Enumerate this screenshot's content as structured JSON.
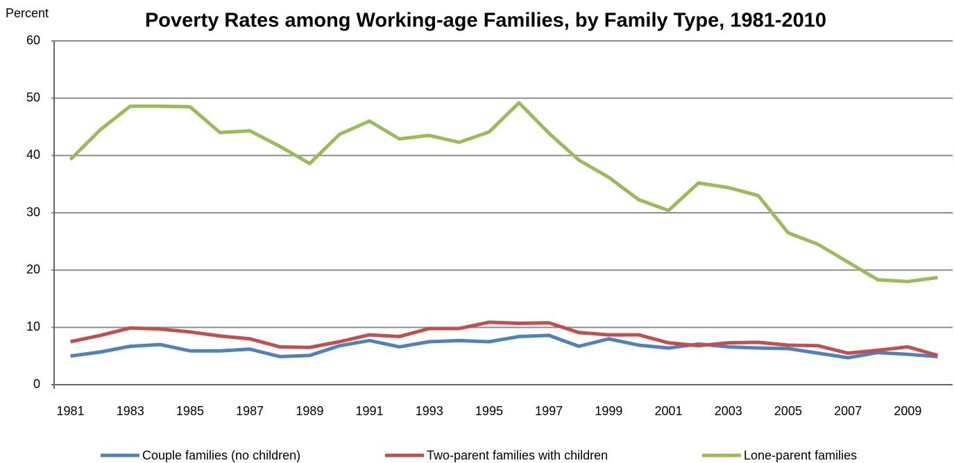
{
  "chart_data": {
    "type": "line",
    "title": "Poverty Rates among Working-age Families, by Family Type, 1981-2010",
    "y_axis_label": "Percent",
    "categories": [
      "1981",
      null,
      "1983",
      null,
      "1985",
      null,
      "1987",
      null,
      "1989",
      null,
      "1991",
      null,
      "1993",
      null,
      "1995",
      null,
      "1997",
      null,
      "1999",
      null,
      "2001",
      null,
      "2003",
      null,
      "2005",
      null,
      "2007",
      null,
      "2009",
      null
    ],
    "series": [
      {
        "name": "Couple families (no children)",
        "color": "#4f81bd",
        "values": [
          5.0,
          5.7,
          6.7,
          7.0,
          5.9,
          5.9,
          6.2,
          4.9,
          5.1,
          6.8,
          7.7,
          6.6,
          7.5,
          7.7,
          7.5,
          8.4,
          8.6,
          6.7,
          8.0,
          6.9,
          6.4,
          7.1,
          6.6,
          6.4,
          6.3,
          5.5,
          4.7,
          5.6,
          5.3,
          4.9
        ]
      },
      {
        "name": "Two-parent families with children",
        "color": "#c0504d",
        "values": [
          7.5,
          8.6,
          9.9,
          9.7,
          9.2,
          8.5,
          8.0,
          6.6,
          6.5,
          7.5,
          8.7,
          8.4,
          9.8,
          9.8,
          10.9,
          10.7,
          10.8,
          9.1,
          8.7,
          8.7,
          7.3,
          6.8,
          7.3,
          7.4,
          6.9,
          6.8,
          5.5,
          6.0,
          6.6,
          5.1
        ]
      },
      {
        "name": "Lone-parent families",
        "color": "#9bbb59",
        "values": [
          39.3,
          44.5,
          48.6,
          48.6,
          48.5,
          44.0,
          44.3,
          41.6,
          38.6,
          43.7,
          46.0,
          42.9,
          43.5,
          42.3,
          44.1,
          49.2,
          43.9,
          39.2,
          36.2,
          32.3,
          30.4,
          35.2,
          34.4,
          33.0,
          26.5,
          24.5,
          21.4,
          18.3,
          18.0,
          18.7
        ]
      }
    ],
    "ylim": [
      0,
      60
    ],
    "yticks": [
      0,
      10,
      20,
      30,
      40,
      50,
      60
    ],
    "grid": true,
    "legend": "bottom"
  }
}
